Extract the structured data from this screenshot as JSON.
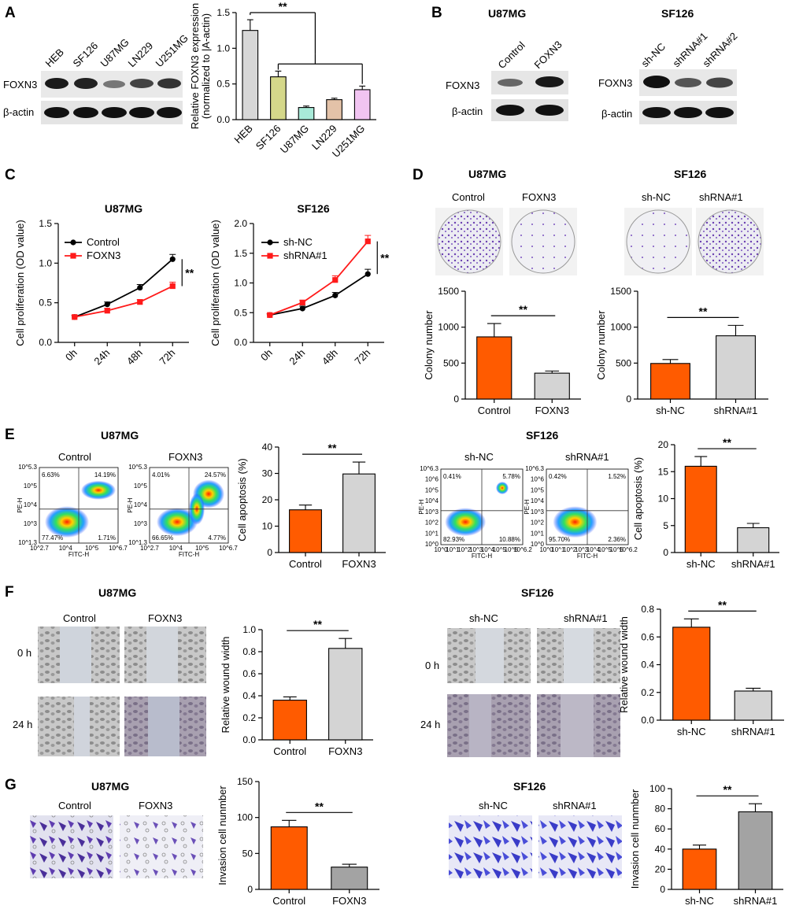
{
  "panels": {
    "A": "A",
    "B": "B",
    "C": "C",
    "D": "D",
    "E": "E",
    "F": "F",
    "G": "G"
  },
  "colors": {
    "orange": "#ff5b00",
    "gray": "#d4d4d4",
    "darkgray": "#a3a3a3",
    "red": "#ff1a1a",
    "black": "#000000",
    "purple": "#6b3fa8"
  },
  "sig": "**",
  "A": {
    "blot_lanes": [
      "HEB",
      "SF126",
      "U87MG",
      "LN229",
      "U251MG"
    ],
    "blot_rows": [
      "FOXN3",
      "β-actin"
    ]
  },
  "B": {
    "left_title": "U87MG",
    "left_lanes": [
      "Control",
      "FOXN3"
    ],
    "right_title": "SF126",
    "right_lanes": [
      "sh-NC",
      "shRNA#1",
      "shRNA#2"
    ],
    "rows": [
      "FOXN3",
      "β-actin"
    ]
  },
  "D": {
    "left_title": "U87MG",
    "left_labels": [
      "Control",
      "FOXN3"
    ],
    "right_title": "SF126",
    "right_labels": [
      "sh-NC",
      "shRNA#1"
    ]
  },
  "E": {
    "left_title": "U87MG",
    "left_labels": [
      "Control",
      "FOXN3"
    ],
    "right_title": "SF126",
    "right_labels": [
      "sh-NC",
      "shRNA#1"
    ],
    "flow_axis": {
      "x": "FITC-H",
      "y": "PE-H"
    },
    "ticks_left": {
      "x": [
        "10^2.7",
        "10^4",
        "10^5",
        "10^6.7"
      ],
      "y": [
        "10^1.3",
        "10^3",
        "10^4",
        "10^5",
        "10^5.3"
      ]
    },
    "ticks_right": {
      "x": [
        "10^0",
        "10^1",
        "10^2",
        "10^3",
        "10^4",
        "10^5",
        "10^6",
        "10^6.2"
      ],
      "y": [
        "10^0",
        "10^1",
        "10^2",
        "10^3",
        "10^4",
        "10^5",
        "10^6",
        "10^6.3"
      ]
    },
    "quadrants": [
      {
        "tl": "6.63%",
        "tr": "14.19%",
        "bl": "77.47%",
        "br": "1.71%"
      },
      {
        "tl": "4.01%",
        "tr": "24.57%",
        "bl": "66.65%",
        "br": "4.77%"
      },
      {
        "tl": "0.41%",
        "tr": "5.78%",
        "bl": "82.93%",
        "br": "10.88%"
      },
      {
        "tl": "0.42%",
        "tr": "1.52%",
        "bl": "95.70%",
        "br": "2.36%"
      }
    ]
  },
  "F": {
    "left_title": "U87MG",
    "left_labels": [
      "Control",
      "FOXN3"
    ],
    "right_title": "SF126",
    "right_labels": [
      "sh-NC",
      "shRNA#1"
    ],
    "times": [
      "0 h",
      "24 h"
    ]
  },
  "G": {
    "left_title": "U87MG",
    "left_labels": [
      "Control",
      "FOXN3"
    ],
    "right_title": "SF126",
    "right_labels": [
      "sh-NC",
      "shRNA#1"
    ]
  },
  "chart_data": [
    {
      "id": "A",
      "type": "bar",
      "title": "",
      "ylabel": "Relative FOXN3 expression (normalized to |A-actin)",
      "categories": [
        "HEB",
        "SF126",
        "U87MG",
        "LN229",
        "U251MG"
      ],
      "values": [
        1.25,
        0.6,
        0.17,
        0.28,
        0.42
      ],
      "errors": [
        0.15,
        0.08,
        0.02,
        0.02,
        0.05
      ],
      "colors": [
        "#d7d7d7",
        "#d5d88a",
        "#a8ead8",
        "#e3c2a8",
        "#f1c4f1"
      ],
      "ylim": [
        0,
        1.5
      ],
      "yticks": [
        "0.0",
        "0.5",
        "1.0",
        "1.5"
      ]
    },
    {
      "id": "C1",
      "type": "line",
      "title": "U87MG",
      "ylabel": "Cell proliferation (OD value)",
      "categories": [
        "0h",
        "24h",
        "48h",
        "72h"
      ],
      "ylim": [
        0,
        1.5
      ],
      "yticks": [
        "0.0",
        "0.5",
        "1.0",
        "1.5"
      ],
      "series": [
        {
          "name": "Control",
          "values": [
            0.32,
            0.48,
            0.69,
            1.05
          ],
          "errors": [
            0.02,
            0.03,
            0.04,
            0.06
          ],
          "color": "#000000",
          "marker": "circle"
        },
        {
          "name": "FOXN3",
          "values": [
            0.32,
            0.4,
            0.51,
            0.71
          ],
          "errors": [
            0.02,
            0.03,
            0.03,
            0.05
          ],
          "color": "#ff1a1a",
          "marker": "square"
        }
      ]
    },
    {
      "id": "C2",
      "type": "line",
      "title": "SF126",
      "ylabel": "Cell proliferation (OD value)",
      "categories": [
        "0h",
        "24h",
        "48h",
        "72h"
      ],
      "ylim": [
        0,
        2.0
      ],
      "yticks": [
        "0.0",
        "0.5",
        "1.0",
        "1.5",
        "2.0"
      ],
      "series": [
        {
          "name": "sh-NC",
          "values": [
            0.46,
            0.57,
            0.79,
            1.15
          ],
          "errors": [
            0.02,
            0.04,
            0.05,
            0.08
          ],
          "color": "#000000",
          "marker": "circle"
        },
        {
          "name": "shRNA#1",
          "values": [
            0.46,
            0.67,
            1.05,
            1.7
          ],
          "errors": [
            0.02,
            0.04,
            0.07,
            0.1
          ],
          "color": "#ff1a1a",
          "marker": "square"
        }
      ]
    },
    {
      "id": "D1",
      "type": "bar",
      "ylabel": "Colony number",
      "categories": [
        "Control",
        "FOXN3"
      ],
      "values": [
        865,
        360
      ],
      "errors": [
        185,
        30
      ],
      "colors": [
        "#ff5b00",
        "#d4d4d4"
      ],
      "ylim": [
        0,
        1500
      ],
      "yticks": [
        "0",
        "500",
        "1000",
        "1500"
      ]
    },
    {
      "id": "D2",
      "type": "bar",
      "ylabel": "Colony number",
      "categories": [
        "sh-NC",
        "shRNA#1"
      ],
      "values": [
        495,
        880
      ],
      "errors": [
        55,
        145
      ],
      "colors": [
        "#ff5b00",
        "#d4d4d4"
      ],
      "ylim": [
        0,
        1500
      ],
      "yticks": [
        "0",
        "500",
        "1000",
        "1500"
      ]
    },
    {
      "id": "E1",
      "type": "bar",
      "ylabel": "Cell apoptosis (%)",
      "categories": [
        "Control",
        "FOXN3"
      ],
      "values": [
        16.2,
        29.8
      ],
      "errors": [
        1.8,
        4.5
      ],
      "colors": [
        "#ff5b00",
        "#d4d4d4"
      ],
      "ylim": [
        0,
        40
      ],
      "yticks": [
        "0",
        "10",
        "20",
        "30",
        "40"
      ]
    },
    {
      "id": "E2",
      "type": "bar",
      "ylabel": "Cell apoptosis (%)",
      "categories": [
        "sh-NC",
        "shRNA#1"
      ],
      "values": [
        16.0,
        4.6
      ],
      "errors": [
        1.8,
        0.8
      ],
      "colors": [
        "#ff5b00",
        "#d4d4d4"
      ],
      "ylim": [
        0,
        20
      ],
      "yticks": [
        "0",
        "5",
        "10",
        "15",
        "20"
      ]
    },
    {
      "id": "F1",
      "type": "bar",
      "ylabel": "Relative wound width",
      "categories": [
        "Control",
        "FOXN3"
      ],
      "values": [
        0.36,
        0.83
      ],
      "errors": [
        0.03,
        0.09
      ],
      "colors": [
        "#ff5b00",
        "#d4d4d4"
      ],
      "ylim": [
        0,
        1.0
      ],
      "yticks": [
        "0.0",
        "0.2",
        "0.4",
        "0.6",
        "0.8",
        "1.0"
      ]
    },
    {
      "id": "F2",
      "type": "bar",
      "ylabel": "Relative wound width",
      "categories": [
        "sh-NC",
        "shRNA#1"
      ],
      "values": [
        0.67,
        0.21
      ],
      "errors": [
        0.06,
        0.02
      ],
      "colors": [
        "#ff5b00",
        "#d4d4d4"
      ],
      "ylim": [
        0,
        0.8
      ],
      "yticks": [
        "0.0",
        "0.2",
        "0.4",
        "0.6",
        "0.8"
      ]
    },
    {
      "id": "G1",
      "type": "bar",
      "ylabel": "Invasion cell nunmber",
      "categories": [
        "Control",
        "FOXN3"
      ],
      "values": [
        87,
        31
      ],
      "errors": [
        9,
        4
      ],
      "colors": [
        "#ff5b00",
        "#a3a3a3"
      ],
      "ylim": [
        0,
        150
      ],
      "yticks": [
        "0",
        "50",
        "100",
        "150"
      ]
    },
    {
      "id": "G2",
      "type": "bar",
      "ylabel": "Invasion cell nunmber",
      "categories": [
        "sh-NC",
        "shRNA#1"
      ],
      "values": [
        40,
        77
      ],
      "errors": [
        4,
        8
      ],
      "colors": [
        "#ff5b00",
        "#a3a3a3"
      ],
      "ylim": [
        0,
        100
      ],
      "yticks": [
        "0",
        "20",
        "40",
        "60",
        "80",
        "100"
      ]
    }
  ]
}
